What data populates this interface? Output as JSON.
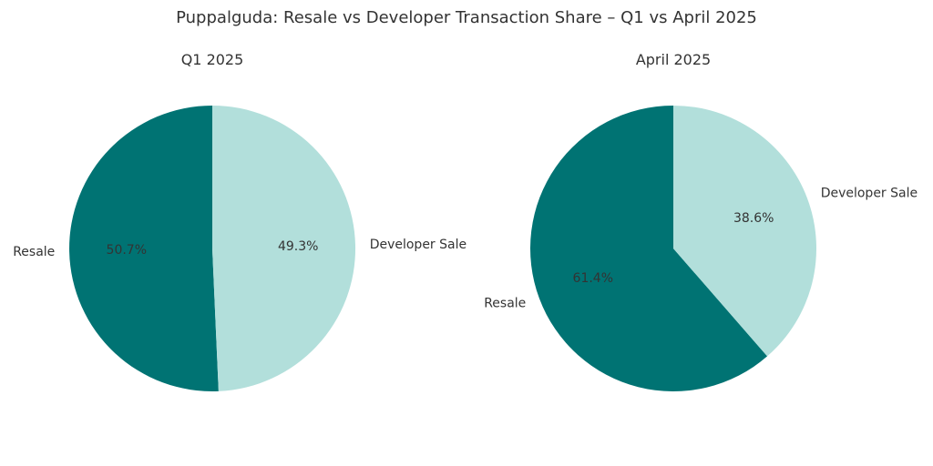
{
  "title": "Puppalguda: Resale vs Developer Transaction Share – Q1 vs April 2025",
  "colors": {
    "resale": "#007373",
    "developer": "#b2dfdb"
  },
  "chart_data": [
    {
      "type": "pie",
      "title": "Q1 2025",
      "labels": [
        "Resale",
        "Developer Sale"
      ],
      "values": [
        50.7,
        49.3
      ],
      "value_labels": [
        "50.7%",
        "49.3%"
      ],
      "start_angle_deg": 90,
      "direction": "counterclockwise"
    },
    {
      "type": "pie",
      "title": "April 2025",
      "labels": [
        "Resale",
        "Developer Sale"
      ],
      "values": [
        61.4,
        38.6
      ],
      "value_labels": [
        "61.4%",
        "38.6%"
      ],
      "start_angle_deg": 90,
      "direction": "counterclockwise"
    }
  ]
}
